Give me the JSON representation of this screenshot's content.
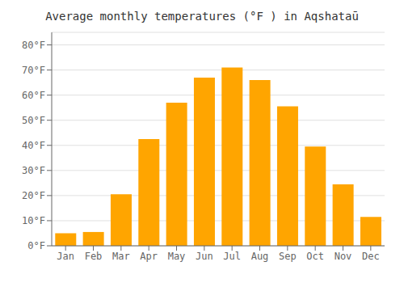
{
  "chart_data": {
    "type": "bar",
    "title": "Average monthly temperatures (°F ) in Aqshataū",
    "categories": [
      "Jan",
      "Feb",
      "Mar",
      "Apr",
      "May",
      "Jun",
      "Jul",
      "Aug",
      "Sep",
      "Oct",
      "Nov",
      "Dec"
    ],
    "values": [
      5,
      5.5,
      20.5,
      42.5,
      57,
      67,
      71,
      66,
      55.5,
      39.5,
      24.5,
      11.5
    ],
    "color": "#FFA500",
    "ylim": [
      0,
      85
    ],
    "yticks": [
      {
        "value": 0,
        "label": "0°F"
      },
      {
        "value": 10,
        "label": "10°F"
      },
      {
        "value": 20,
        "label": "20°F"
      },
      {
        "value": 30,
        "label": "30°F"
      },
      {
        "value": 40,
        "label": "40°F"
      },
      {
        "value": 50,
        "label": "50°F"
      },
      {
        "value": 60,
        "label": "60°F"
      },
      {
        "value": 70,
        "label": "70°F"
      },
      {
        "value": 80,
        "label": "80°F"
      }
    ],
    "grid": true
  }
}
